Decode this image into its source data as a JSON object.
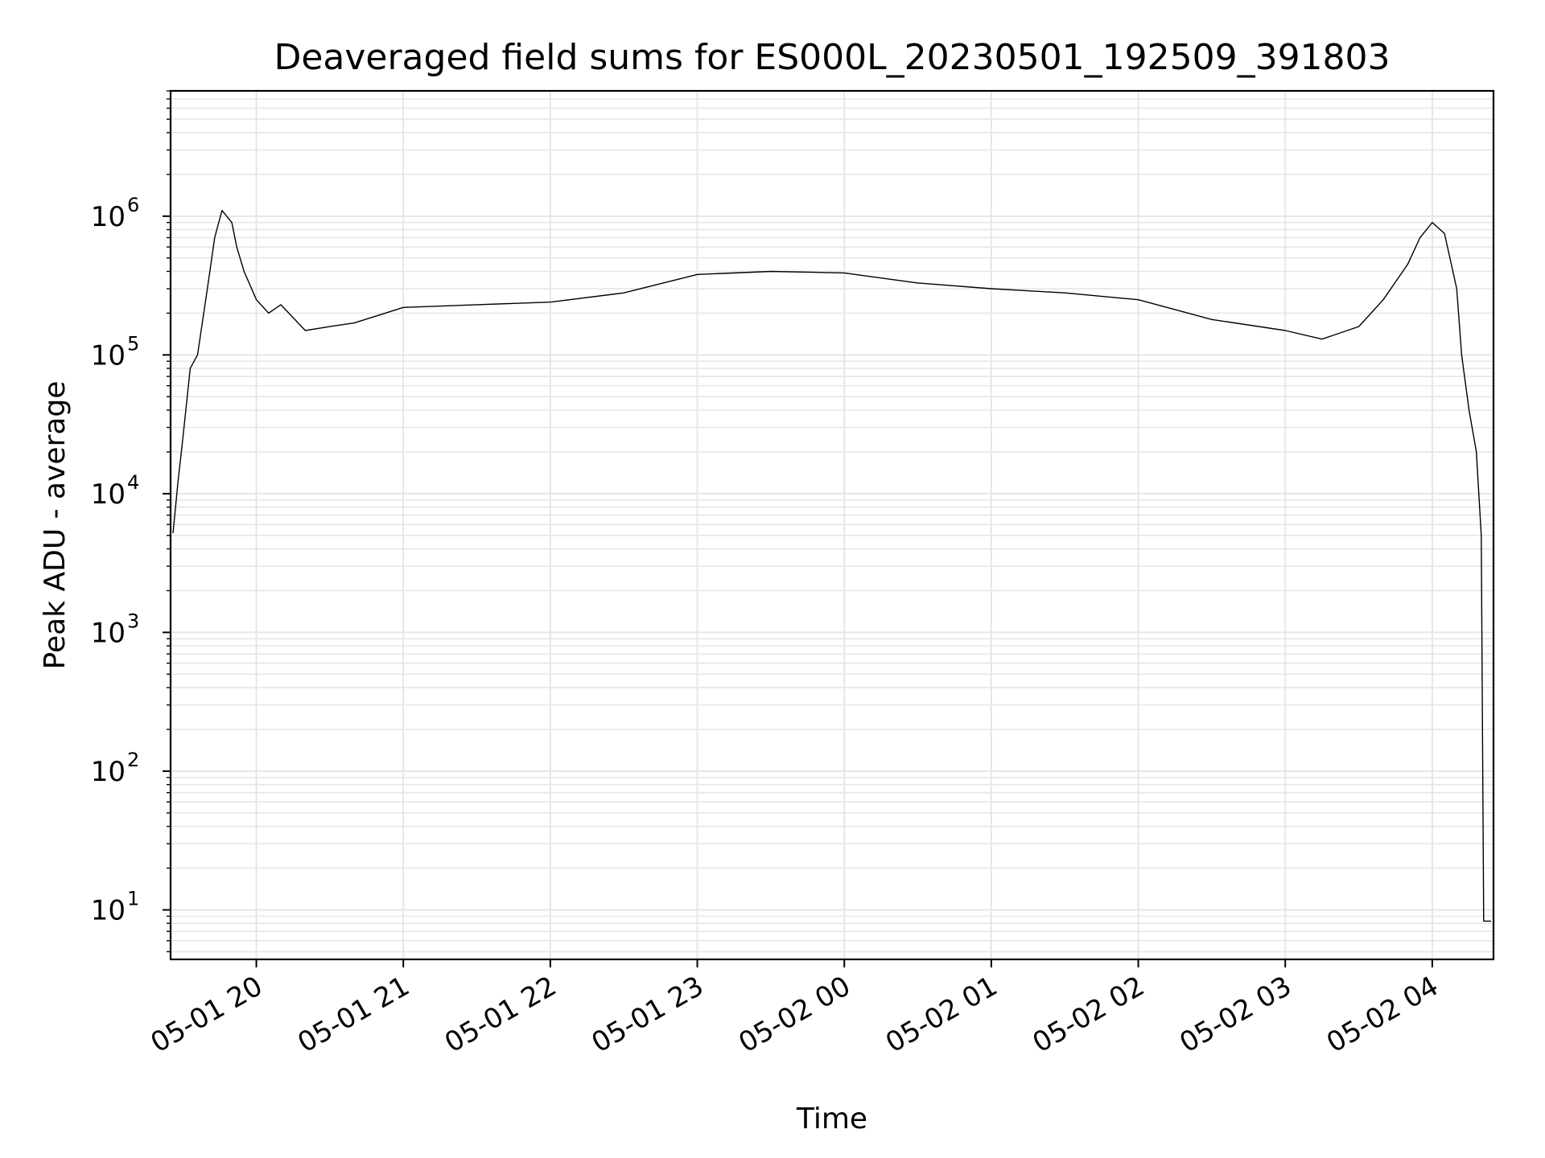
{
  "chart_data": {
    "type": "line",
    "title": "Deaveraged field sums for ES000L_20230501_192509_391803",
    "xlabel": "Time",
    "ylabel": "Peak ADU - average",
    "yscale": "log",
    "ylim": [
      4.4,
      8000000
    ],
    "xlim": [
      "2023-05-01 19:25",
      "2023-05-02 04:25"
    ],
    "grid": true,
    "x_ticks": [
      "05-01 20",
      "05-01 21",
      "05-01 22",
      "05-01 23",
      "05-02 00",
      "05-02 01",
      "05-02 02",
      "05-02 03",
      "05-02 04"
    ],
    "y_ticks": [
      {
        "base": "10",
        "exp": "1",
        "value": 10
      },
      {
        "base": "10",
        "exp": "2",
        "value": 100
      },
      {
        "base": "10",
        "exp": "3",
        "value": 1000
      },
      {
        "base": "10",
        "exp": "4",
        "value": 10000
      },
      {
        "base": "10",
        "exp": "5",
        "value": 100000
      },
      {
        "base": "10",
        "exp": "6",
        "value": 1000000
      }
    ],
    "line_color": "#000000",
    "grid_color": "#e6e6e6",
    "series": [
      {
        "x": [
          "2023-05-01 19:26",
          "2023-05-01 19:28",
          "2023-05-01 19:30",
          "2023-05-01 19:33",
          "2023-05-01 19:36",
          "2023-05-01 19:40",
          "2023-05-01 19:43",
          "2023-05-01 19:46",
          "2023-05-01 19:50",
          "2023-05-01 19:52",
          "2023-05-01 19:55",
          "2023-05-01 20:00",
          "2023-05-01 20:05",
          "2023-05-01 20:10",
          "2023-05-01 20:20",
          "2023-05-01 20:30",
          "2023-05-01 20:40",
          "2023-05-01 21:00",
          "2023-05-01 21:30",
          "2023-05-01 22:00",
          "2023-05-01 22:30",
          "2023-05-01 23:00",
          "2023-05-01 23:30",
          "2023-05-02 00:00",
          "2023-05-02 00:30",
          "2023-05-02 01:00",
          "2023-05-02 01:30",
          "2023-05-02 02:00",
          "2023-05-02 02:30",
          "2023-05-02 03:00",
          "2023-05-02 03:15",
          "2023-05-02 03:30",
          "2023-05-02 03:40",
          "2023-05-02 03:50",
          "2023-05-02 03:55",
          "2023-05-02 04:00",
          "2023-05-02 04:05",
          "2023-05-02 04:10",
          "2023-05-02 04:12",
          "2023-05-02 04:15",
          "2023-05-02 04:18",
          "2023-05-02 04:20",
          "2023-05-02 04:21",
          "2023-05-02 04:22",
          "2023-05-02 04:24"
        ],
        "values": [
          5200,
          12000,
          25000,
          80000,
          100000,
          300000,
          700000,
          1100000,
          900000,
          600000,
          400000,
          250000,
          200000,
          230000,
          150000,
          160000,
          170000,
          220000,
          230000,
          240000,
          280000,
          380000,
          400000,
          390000,
          330000,
          300000,
          280000,
          250000,
          180000,
          150000,
          130000,
          160000,
          250000,
          450000,
          700000,
          900000,
          750000,
          300000,
          100000,
          40000,
          20000,
          5000,
          8.3,
          8.3,
          8.3
        ]
      }
    ]
  }
}
